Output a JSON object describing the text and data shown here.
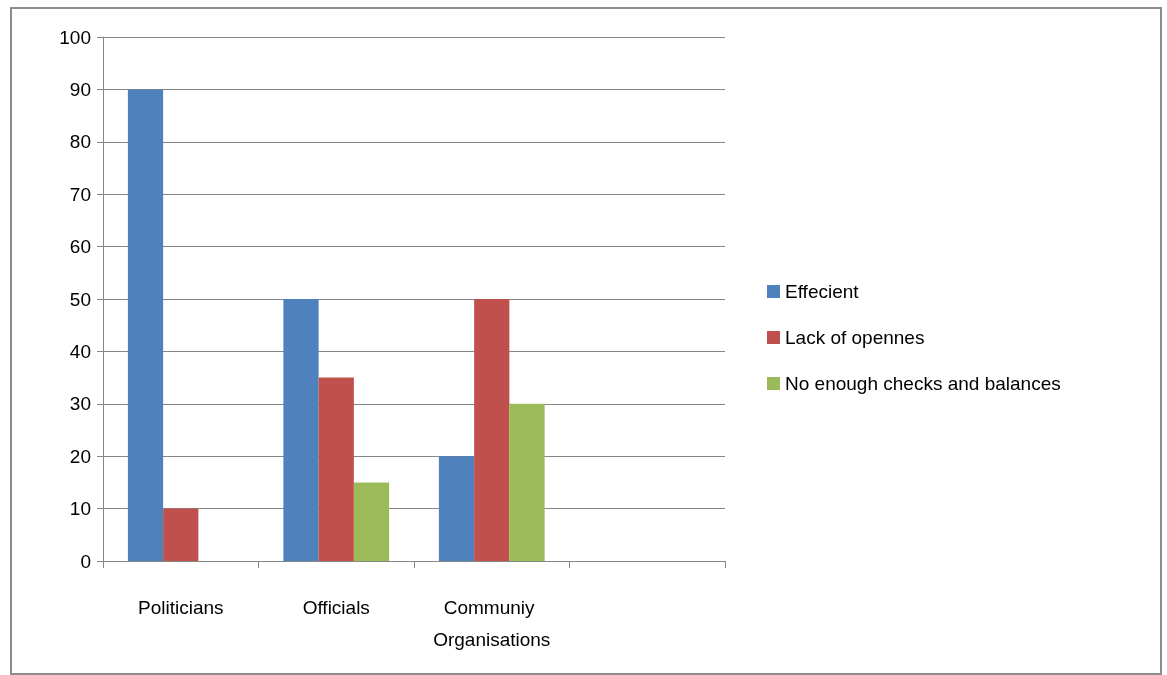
{
  "chart_data": {
    "type": "bar",
    "categories": [
      "Politicians",
      "Officials",
      "Communiy Organisations",
      null
    ],
    "series": [
      {
        "name": "Effecient",
        "color": "#4f81bd",
        "values": [
          90,
          50,
          20,
          null
        ]
      },
      {
        "name": "Lack of opennes",
        "color": "#c0504d",
        "values": [
          10,
          35,
          50,
          null
        ]
      },
      {
        "name": "No enough checks and balances",
        "color": "#9bbb59",
        "values": [
          null,
          15,
          30,
          null
        ]
      }
    ],
    "ylim": [
      0,
      100
    ],
    "yticks": [
      0,
      10,
      20,
      30,
      40,
      50,
      60,
      70,
      80,
      90,
      100
    ],
    "grid": "y",
    "legend": "right"
  }
}
